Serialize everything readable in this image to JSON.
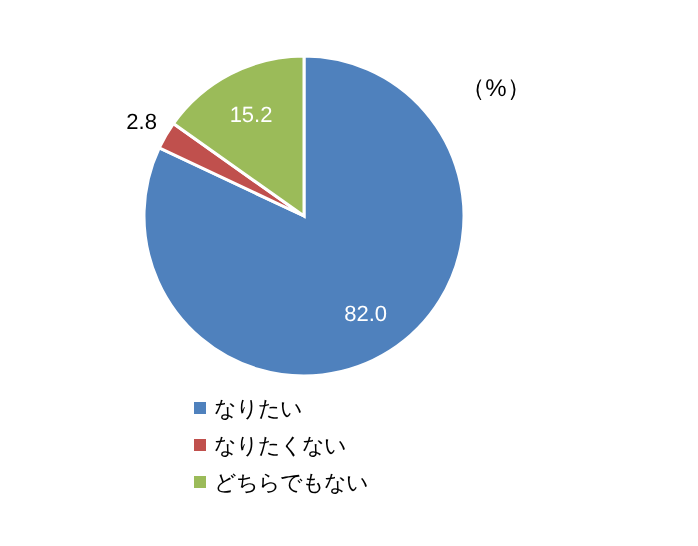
{
  "chart_data": {
    "type": "pie",
    "categories": [
      "なりたい",
      "なりたくない",
      "どちらでもない"
    ],
    "values": [
      82.0,
      2.8,
      15.2
    ],
    "value_labels": [
      "82.0",
      "2.8",
      "15.2"
    ],
    "colors": [
      "#4f81bd",
      "#c0504d",
      "#9bbb59"
    ],
    "annotations": [
      "（%）"
    ],
    "legend": "bottom"
  }
}
